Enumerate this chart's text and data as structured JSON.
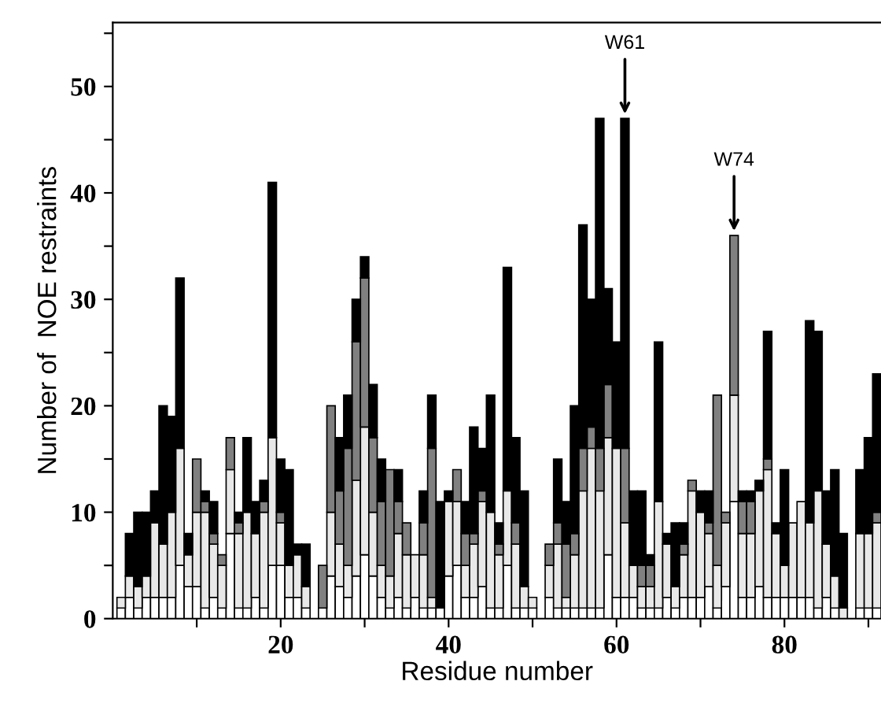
{
  "chart_data": {
    "type": "bar",
    "stacked": true,
    "xlabel": "Residue number",
    "ylabel": "Number of  NOE restraints",
    "x": [
      1,
      2,
      3,
      4,
      5,
      6,
      7,
      8,
      9,
      10,
      11,
      12,
      13,
      14,
      15,
      16,
      17,
      18,
      19,
      20,
      21,
      22,
      23,
      24,
      25,
      26,
      27,
      28,
      29,
      30,
      31,
      32,
      33,
      34,
      35,
      36,
      37,
      38,
      39,
      40,
      41,
      42,
      43,
      44,
      45,
      46,
      47,
      48,
      49,
      50,
      51,
      52,
      53,
      54,
      55,
      56,
      57,
      58,
      59,
      60,
      61,
      62,
      63,
      64,
      65,
      66,
      67,
      68,
      69,
      70,
      71,
      72,
      73,
      74,
      75,
      76,
      77,
      78,
      79,
      80,
      81,
      82,
      83,
      84,
      85,
      86,
      87,
      88,
      89,
      90,
      91
    ],
    "series": [
      {
        "color": "#ffffff",
        "values": [
          1,
          2,
          1,
          2,
          2,
          2,
          2,
          5,
          3,
          3,
          1,
          2,
          1,
          8,
          1,
          1,
          2,
          1,
          5,
          5,
          2,
          2,
          1,
          0,
          1,
          4,
          3,
          2,
          4,
          6,
          4,
          2,
          1,
          2,
          1,
          2,
          1,
          1,
          1,
          4,
          5,
          2,
          2,
          3,
          1,
          1,
          5,
          1,
          1,
          1,
          0,
          2,
          1,
          1,
          1,
          1,
          1,
          1,
          6,
          2,
          2,
          2,
          1,
          1,
          1,
          2,
          1,
          2,
          2,
          2,
          3,
          1,
          3,
          11,
          2,
          2,
          3,
          2,
          2,
          2,
          2,
          2,
          2,
          1,
          2,
          1,
          0,
          0,
          1,
          1,
          1
        ]
      },
      {
        "color": "#e8e8e8",
        "values": [
          1,
          2,
          2,
          2,
          7,
          5,
          8,
          11,
          3,
          7,
          9,
          5,
          4,
          6,
          7,
          9,
          6,
          9,
          12,
          4,
          3,
          4,
          2,
          0,
          0,
          6,
          4,
          3,
          9,
          12,
          6,
          3,
          3,
          6,
          5,
          4,
          5,
          1,
          0,
          7,
          6,
          3,
          5,
          8,
          9,
          5,
          7,
          6,
          2,
          1,
          0,
          3,
          6,
          1,
          5,
          11,
          15,
          11,
          11,
          14,
          7,
          3,
          2,
          2,
          10,
          5,
          2,
          4,
          10,
          8,
          5,
          4,
          6,
          10,
          6,
          6,
          9,
          12,
          6,
          3,
          7,
          9,
          7,
          11,
          5,
          3,
          1,
          0,
          7,
          7,
          8
        ]
      },
      {
        "color": "#808080",
        "values": [
          0,
          0,
          0,
          0,
          0,
          0,
          0,
          0,
          0,
          5,
          1,
          1,
          1,
          3,
          1,
          0,
          0,
          1,
          0,
          1,
          0,
          0,
          0,
          0,
          4,
          10,
          5,
          11,
          13,
          14,
          7,
          6,
          10,
          3,
          3,
          0,
          3,
          14,
          0,
          0,
          3,
          3,
          1,
          1,
          0,
          1,
          0,
          2,
          0,
          0,
          0,
          2,
          2,
          5,
          2,
          4,
          2,
          4,
          5,
          0,
          7,
          0,
          2,
          2,
          0,
          0,
          0,
          1,
          1,
          0,
          1,
          16,
          1,
          15,
          3,
          3,
          0,
          1,
          0,
          0,
          0,
          0,
          0,
          0,
          0,
          0,
          0,
          0,
          0,
          0,
          1
        ]
      },
      {
        "color": "#000000",
        "values": [
          0,
          4,
          7,
          6,
          3,
          13,
          9,
          16,
          2,
          0,
          1,
          3,
          0,
          0,
          1,
          7,
          3,
          2,
          24,
          5,
          9,
          1,
          4,
          0,
          0,
          0,
          5,
          5,
          4,
          2,
          5,
          4,
          0,
          3,
          0,
          0,
          3,
          5,
          10,
          1,
          0,
          3,
          10,
          4,
          11,
          2,
          21,
          8,
          9,
          0,
          0,
          0,
          6,
          4,
          12,
          21,
          12,
          31,
          9,
          10,
          31,
          7,
          7,
          1,
          15,
          1,
          6,
          2,
          0,
          2,
          3,
          0,
          0,
          0,
          1,
          1,
          1,
          12,
          1,
          9,
          0,
          0,
          19,
          15,
          5,
          10,
          7,
          0,
          6,
          9,
          13
        ]
      }
    ],
    "xlim": [
      0,
      91.5
    ],
    "xticks": [
      {
        "value": 10,
        "label": null
      },
      20,
      {
        "value": 30,
        "label": null
      },
      40,
      {
        "value": 50,
        "label": null
      },
      60,
      {
        "value": 70,
        "label": null
      },
      80,
      {
        "value": 90,
        "label": null
      }
    ],
    "ylim": [
      0,
      56
    ],
    "yticks": [
      0,
      {
        "value": 5,
        "label": null
      },
      10,
      {
        "value": 15,
        "label": null
      },
      20,
      {
        "value": 25,
        "label": null
      },
      30,
      {
        "value": 35,
        "label": null
      },
      40,
      {
        "value": 45,
        "label": null
      },
      50,
      {
        "value": 55,
        "label": null
      }
    ],
    "annotations": [
      {
        "text": "W61",
        "x": 61,
        "y": 47
      },
      {
        "text": "W74",
        "x": 74,
        "y": 36
      }
    ],
    "grid": false
  }
}
